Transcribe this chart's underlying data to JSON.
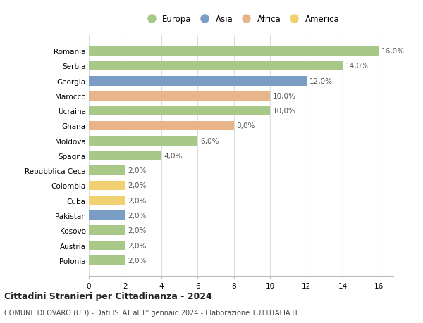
{
  "countries": [
    "Romania",
    "Serbia",
    "Georgia",
    "Marocco",
    "Ucraina",
    "Ghana",
    "Moldova",
    "Spagna",
    "Repubblica Ceca",
    "Colombia",
    "Cuba",
    "Pakistan",
    "Kosovo",
    "Austria",
    "Polonia"
  ],
  "values": [
    16.0,
    14.0,
    12.0,
    10.0,
    10.0,
    8.0,
    6.0,
    4.0,
    2.0,
    2.0,
    2.0,
    2.0,
    2.0,
    2.0,
    2.0
  ],
  "continents": [
    "Europa",
    "Europa",
    "Asia",
    "Africa",
    "Europa",
    "Africa",
    "Europa",
    "Europa",
    "Europa",
    "America",
    "America",
    "Asia",
    "Europa",
    "Europa",
    "Europa"
  ],
  "colors": {
    "Europa": "#a8c887",
    "Asia": "#7a9dc5",
    "Africa": "#e8b48a",
    "America": "#f0d070"
  },
  "xlim": [
    0,
    16
  ],
  "xticks": [
    0,
    2,
    4,
    6,
    8,
    10,
    12,
    14,
    16
  ],
  "title": "Cittadini Stranieri per Cittadinanza - 2024",
  "subtitle": "COMUNE DI OVARO (UD) - Dati ISTAT al 1° gennaio 2024 - Elaborazione TUTTITALIA.IT",
  "background_color": "#ffffff",
  "grid_color": "#dddddd",
  "legend_order": [
    "Europa",
    "Asia",
    "Africa",
    "America"
  ]
}
